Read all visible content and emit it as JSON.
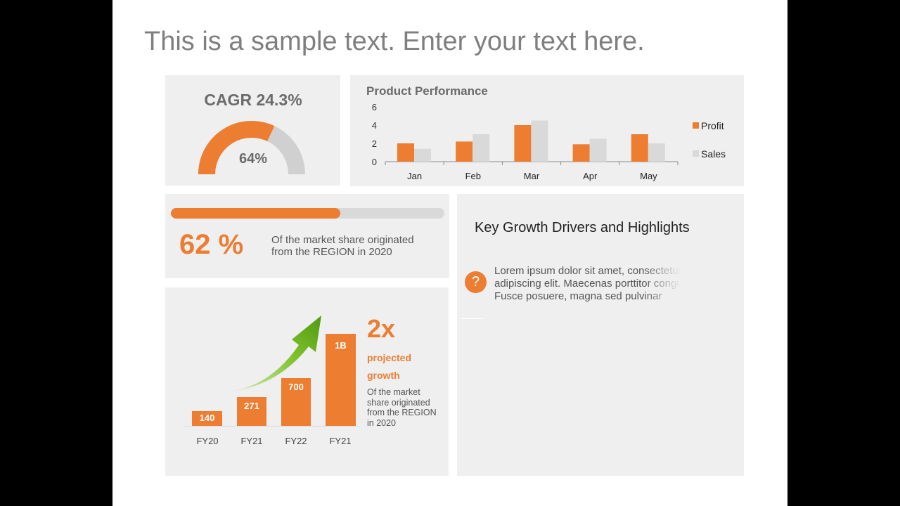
{
  "title": "This is a sample text. Enter your text here.",
  "cagr": {
    "title": "CAGR 24.3%",
    "gauge_value": "64%",
    "gauge_fraction": 0.64,
    "colors": {
      "fill": "#ed7d31",
      "track": "#d0d0d0"
    }
  },
  "chart_data": {
    "type": "bar",
    "title": "Product Performance",
    "categories": [
      "Jan",
      "Feb",
      "Mar",
      "Apr",
      "May"
    ],
    "series": [
      {
        "name": "Profit",
        "values": [
          2,
          2.2,
          4,
          1.9,
          3
        ],
        "color": "#ed7d31"
      },
      {
        "name": "Sales",
        "values": [
          1.4,
          3,
          4.5,
          2.5,
          2
        ],
        "color": "#d9d9d9"
      }
    ],
    "yticks": [
      "0",
      "2",
      "4",
      "6"
    ],
    "ylim": [
      0,
      6
    ],
    "legend": "right",
    "grid": false
  },
  "market": {
    "percent_label": "62 %",
    "progress": 0.62,
    "desc_line1": "Of the market share originated",
    "desc_line2": "from the REGION in 2020"
  },
  "growth": {
    "bars": [
      {
        "label": "FY20",
        "value_label": "140"
      },
      {
        "label": "FY21",
        "value_label": "271"
      },
      {
        "label": "FY22",
        "value_label": "700"
      },
      {
        "label": "FY21",
        "value_label": "1B"
      }
    ],
    "multiplier": "2x",
    "projected_line1": "projected",
    "projected_line2": "growth",
    "desc": "Of the market share originated from the REGION in 2020"
  },
  "highlights": {
    "title": "Key Growth Drivers and Highlights",
    "icon": "question-icon",
    "lines": [
      "Lorem ipsum dolor sit amet, consectetur",
      "adipiscing elit. Maecenas porttitor congue",
      "Fusce posuere, magna sed pulvinar"
    ]
  }
}
